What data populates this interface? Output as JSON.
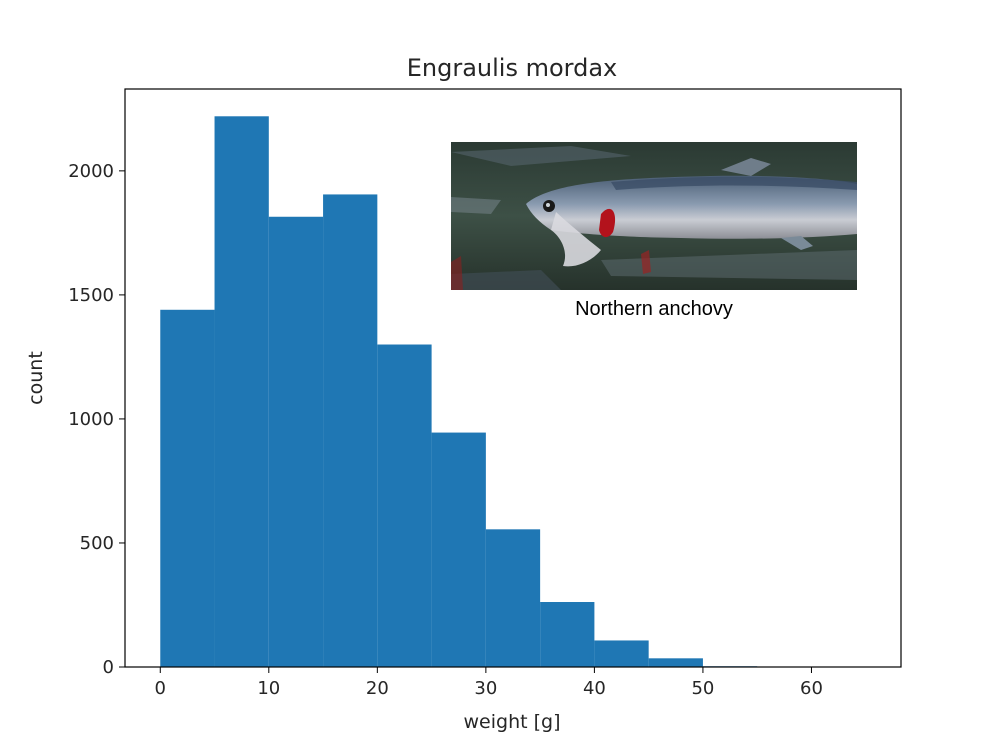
{
  "chart_data": {
    "type": "bar",
    "title": "Engraulis mordax",
    "xlabel": "weight [g]",
    "ylabel": "count",
    "xlim": [
      -3.25,
      68.25
    ],
    "ylim": [
      0,
      2330
    ],
    "xticks": [
      0,
      10,
      20,
      30,
      40,
      50,
      60
    ],
    "yticks": [
      0,
      500,
      1000,
      1500,
      2000
    ],
    "bin_edges": [
      0,
      5,
      10,
      15,
      20,
      25,
      30,
      35,
      40,
      45,
      50,
      55,
      60,
      65
    ],
    "values": [
      1440,
      2220,
      1815,
      1905,
      1300,
      945,
      555,
      262,
      107,
      35,
      3,
      1,
      1
    ],
    "bar_color": "#1f77b4",
    "grid": false
  },
  "inset": {
    "caption": "Northern anchovy",
    "image": "northern-anchovy-photo"
  }
}
